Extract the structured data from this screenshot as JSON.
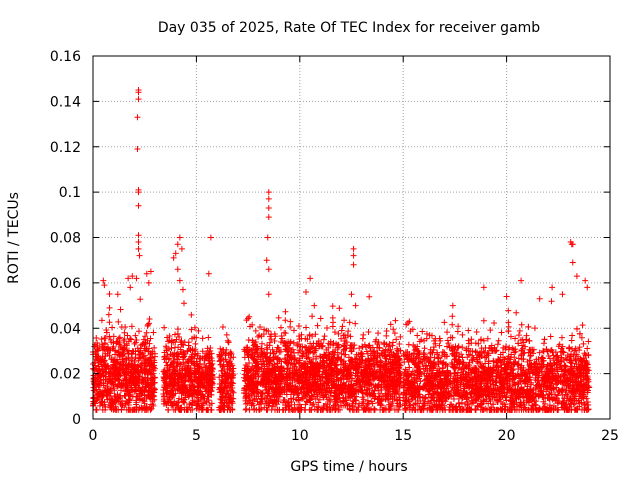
{
  "chart_data": {
    "type": "scatter",
    "title": "Day 035 of 2025, Rate Of TEC Index for receiver gamb",
    "xlabel": "GPS time / hours",
    "ylabel": "ROTI / TECUs",
    "xlim": [
      0,
      25
    ],
    "ylim": [
      0,
      0.16
    ],
    "xticks": [
      0,
      5,
      10,
      15,
      20,
      25
    ],
    "yticks": [
      0,
      0.02,
      0.04,
      0.06,
      0.08,
      0.1,
      0.12,
      0.14,
      0.16
    ],
    "ytick_labels": [
      "0",
      "0.02",
      "0.04",
      "0.06",
      "0.08",
      "0.1",
      "0.12",
      "0.14",
      "0.16"
    ],
    "grid": true,
    "marker": "+",
    "color": "#ff0000",
    "series": [
      {
        "name": "ROTI",
        "segments": [
          {
            "t0": 0.0,
            "t1": 3.0,
            "base": 0.018,
            "spread": 0.022
          },
          {
            "t0": 3.4,
            "t1": 5.8,
            "base": 0.017,
            "spread": 0.02
          },
          {
            "t0": 6.1,
            "t1": 6.8,
            "base": 0.015,
            "spread": 0.022
          },
          {
            "t0": 7.3,
            "t1": 14.9,
            "base": 0.018,
            "spread": 0.022
          },
          {
            "t0": 15.0,
            "t1": 24.0,
            "base": 0.016,
            "spread": 0.022
          }
        ],
        "spikes": [
          {
            "x": 0.5,
            "y": 0.061
          },
          {
            "x": 0.55,
            "y": 0.059
          },
          {
            "x": 0.8,
            "y": 0.049
          },
          {
            "x": 1.2,
            "y": 0.055
          },
          {
            "x": 1.7,
            "y": 0.062
          },
          {
            "x": 1.8,
            "y": 0.058
          },
          {
            "x": 1.9,
            "y": 0.063
          },
          {
            "x": 2.1,
            "y": 0.062
          },
          {
            "x": 2.2,
            "y": 0.145
          },
          {
            "x": 2.2,
            "y": 0.144
          },
          {
            "x": 2.2,
            "y": 0.141
          },
          {
            "x": 2.15,
            "y": 0.133
          },
          {
            "x": 2.15,
            "y": 0.119
          },
          {
            "x": 2.2,
            "y": 0.101
          },
          {
            "x": 2.2,
            "y": 0.1
          },
          {
            "x": 2.2,
            "y": 0.094
          },
          {
            "x": 2.2,
            "y": 0.081
          },
          {
            "x": 2.2,
            "y": 0.078
          },
          {
            "x": 2.2,
            "y": 0.075
          },
          {
            "x": 2.25,
            "y": 0.072
          },
          {
            "x": 2.6,
            "y": 0.064
          },
          {
            "x": 2.7,
            "y": 0.06
          },
          {
            "x": 2.8,
            "y": 0.065
          },
          {
            "x": 3.9,
            "y": 0.071
          },
          {
            "x": 4.0,
            "y": 0.073
          },
          {
            "x": 4.1,
            "y": 0.077
          },
          {
            "x": 4.2,
            "y": 0.08
          },
          {
            "x": 4.3,
            "y": 0.075
          },
          {
            "x": 4.1,
            "y": 0.066
          },
          {
            "x": 4.2,
            "y": 0.061
          },
          {
            "x": 4.35,
            "y": 0.057
          },
          {
            "x": 4.4,
            "y": 0.051
          },
          {
            "x": 5.7,
            "y": 0.08
          },
          {
            "x": 5.6,
            "y": 0.064
          },
          {
            "x": 8.5,
            "y": 0.1
          },
          {
            "x": 8.5,
            "y": 0.097
          },
          {
            "x": 8.5,
            "y": 0.093
          },
          {
            "x": 8.5,
            "y": 0.089
          },
          {
            "x": 8.45,
            "y": 0.08
          },
          {
            "x": 8.4,
            "y": 0.07
          },
          {
            "x": 8.5,
            "y": 0.066
          },
          {
            "x": 8.5,
            "y": 0.055
          },
          {
            "x": 10.3,
            "y": 0.056
          },
          {
            "x": 10.5,
            "y": 0.062
          },
          {
            "x": 10.7,
            "y": 0.05
          },
          {
            "x": 12.6,
            "y": 0.075
          },
          {
            "x": 12.6,
            "y": 0.072
          },
          {
            "x": 12.6,
            "y": 0.068
          },
          {
            "x": 12.5,
            "y": 0.055
          },
          {
            "x": 12.7,
            "y": 0.05
          },
          {
            "x": 18.9,
            "y": 0.058
          },
          {
            "x": 20.0,
            "y": 0.054
          },
          {
            "x": 20.7,
            "y": 0.061
          },
          {
            "x": 21.6,
            "y": 0.053
          },
          {
            "x": 22.2,
            "y": 0.058
          },
          {
            "x": 22.7,
            "y": 0.055
          },
          {
            "x": 23.1,
            "y": 0.078
          },
          {
            "x": 23.15,
            "y": 0.077
          },
          {
            "x": 23.2,
            "y": 0.077
          },
          {
            "x": 23.2,
            "y": 0.069
          },
          {
            "x": 23.4,
            "y": 0.063
          },
          {
            "x": 23.8,
            "y": 0.061
          },
          {
            "x": 23.9,
            "y": 0.058
          },
          {
            "x": 17.4,
            "y": 0.05
          }
        ]
      }
    ]
  }
}
